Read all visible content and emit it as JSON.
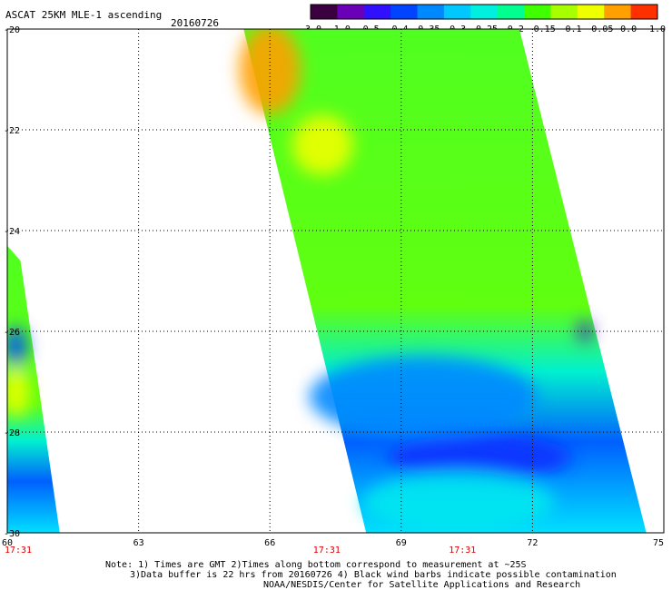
{
  "title": "ASCAT 25KM MLE-1 ascending",
  "date": "20160726",
  "colorbar": {
    "tick_labels": [
      "-3.0",
      "-1.0",
      "-0.5",
      "-0.4",
      "-0.35",
      "-0.3",
      "-0.25",
      "-0.2",
      "-0.15",
      "-0.1",
      "-0.05",
      "0.0",
      "1.0"
    ],
    "colors": [
      "#3a0040",
      "#6a00b8",
      "#3010ff",
      "#0044ff",
      "#0088ff",
      "#00c8ff",
      "#00f0e0",
      "#00ff90",
      "#40ff00",
      "#a8ff00",
      "#f0ff00",
      "#ffa000",
      "#ff3000"
    ]
  },
  "axes": {
    "x_ticks": [
      "60",
      "63",
      "66",
      "69",
      "72",
      "75"
    ],
    "y_ticks": [
      "-20",
      "-22",
      "-24",
      "-26",
      "-28",
      "-30"
    ],
    "lon_range": [
      60,
      75
    ],
    "lat_range": [
      -30,
      -20
    ]
  },
  "times": [
    {
      "label": "17:31",
      "lon": 60.0
    },
    {
      "label": "17:31",
      "lon": 67.3
    },
    {
      "label": "17:31",
      "lon": 70.4
    }
  ],
  "swaths": [
    {
      "name": "main swath",
      "polygon": [
        [
          65.4,
          -20.0
        ],
        [
          71.7,
          -20.0
        ],
        [
          74.6,
          -30.0
        ],
        [
          68.2,
          -30.0
        ]
      ]
    },
    {
      "name": "left swath",
      "polygon": [
        [
          60.0,
          -24.3
        ],
        [
          60.3,
          -24.6
        ],
        [
          61.2,
          -30.0
        ],
        [
          60.0,
          -30.0
        ]
      ]
    }
  ],
  "features": [
    {
      "name": "orange high",
      "lon": 66.0,
      "lat": -20.8,
      "color": "#ffa000",
      "rx": 0.7,
      "ry": 0.9
    },
    {
      "name": "yellow band",
      "lon": 67.2,
      "lat": -22.3,
      "color": "#f0ff00",
      "rx": 0.7,
      "ry": 0.6
    },
    {
      "name": "blue low band",
      "lon": 69.5,
      "lat": -27.3,
      "color": "#0088ff",
      "rx": 2.6,
      "ry": 0.8
    },
    {
      "name": "dark blue core",
      "lon": 70.8,
      "lat": -28.5,
      "color": "#1030ff",
      "rx": 2.1,
      "ry": 0.45
    },
    {
      "name": "cyan south",
      "lon": 70.3,
      "lat": -29.4,
      "color": "#00e8f0",
      "rx": 2.2,
      "ry": 0.6
    },
    {
      "name": "purple spot",
      "lon": 73.2,
      "lat": -26.0,
      "color": "#4a00c0",
      "rx": 0.15,
      "ry": 0.2
    },
    {
      "name": "left yellow patch",
      "lon": 60.2,
      "lat": -27.2,
      "color": "#f0ff00",
      "rx": 0.3,
      "ry": 0.5
    },
    {
      "name": "left blue patch",
      "lon": 60.2,
      "lat": -26.3,
      "color": "#0050ff",
      "rx": 0.25,
      "ry": 0.4
    }
  ],
  "notes": [
    "Note: 1) Times are GMT 2)Times along bottom correspond to measurement at ~25S",
    "3)Data buffer is 22 hrs from 20160726 4) Black wind barbs indicate possible contamination",
    "NOAA/NESDIS/Center for Satellite Applications and Research"
  ]
}
